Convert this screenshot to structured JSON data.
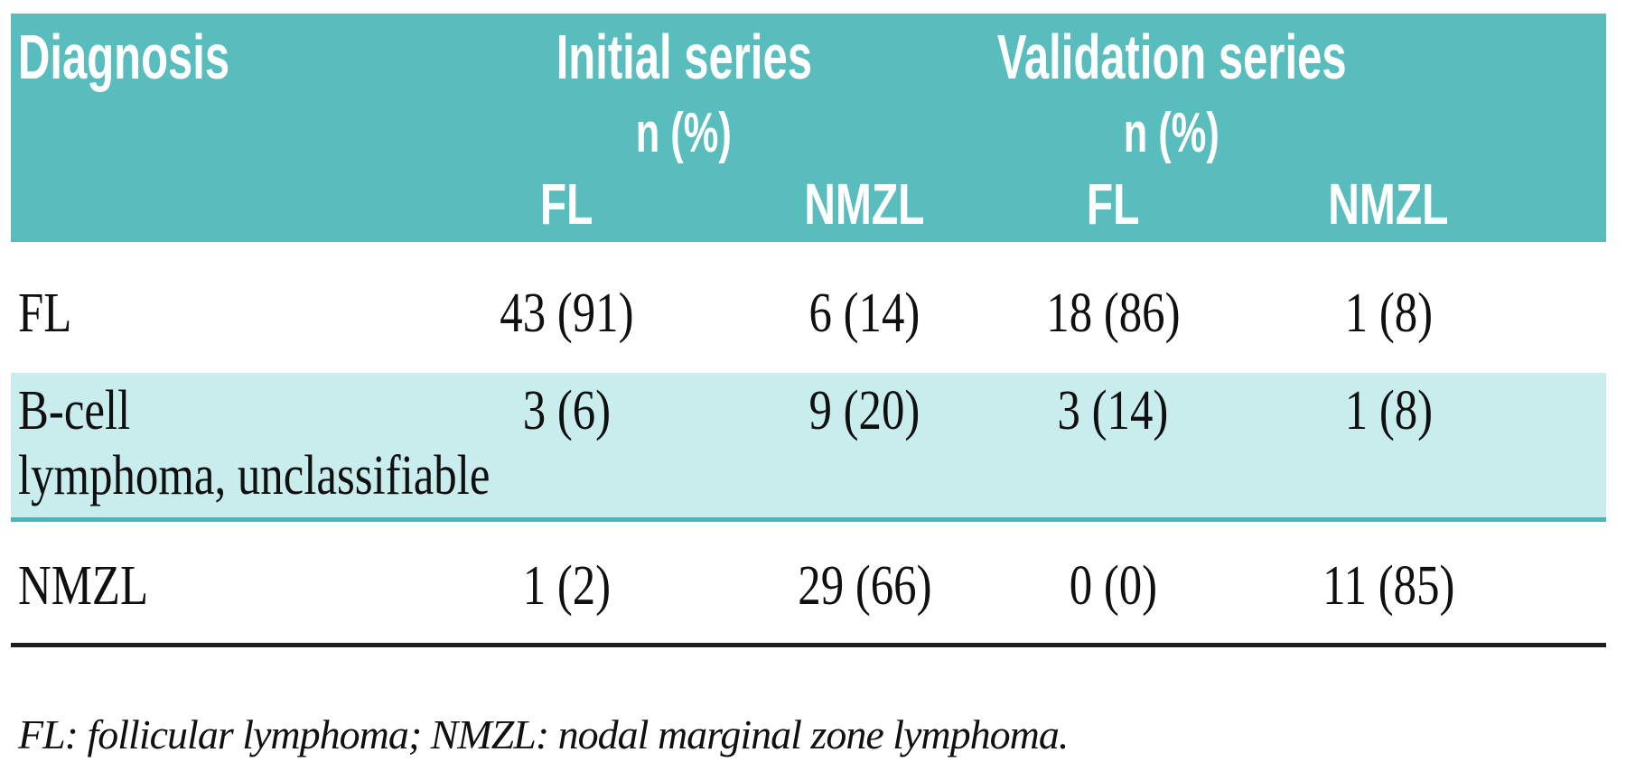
{
  "table": {
    "header": {
      "diagnosis_label": "Diagnosis",
      "groups": [
        {
          "title": "Initial series",
          "subtitle": "n (%)",
          "columns": [
            "FL",
            "NMZL"
          ]
        },
        {
          "title": "Validation series",
          "subtitle": "n (%)",
          "columns": [
            "FL",
            "NMZL"
          ]
        }
      ]
    },
    "rows": [
      {
        "diagnosis": "FL",
        "diagnosis_line2": "",
        "values": [
          "43 (91)",
          "6 (14)",
          "18 (86)",
          "1 (8)"
        ]
      },
      {
        "diagnosis": "B-cell",
        "diagnosis_line2": "lymphoma, unclassifiable",
        "values": [
          "3 (6)",
          "9 (20)",
          "3 (14)",
          "1 (8)"
        ]
      },
      {
        "diagnosis": "NMZL",
        "diagnosis_line2": "",
        "values": [
          "1 (2)",
          "29 (66)",
          "0 (0)",
          "11 (85)"
        ]
      }
    ],
    "footnote": "FL: follicular lymphoma; NMZL: nodal marginal zone lymphoma."
  },
  "colors": {
    "header_bg": "#5abdbd",
    "header_text": "#ffffff",
    "highlight_row_bg": "#c9ecec",
    "teal_separator": "#50b4b5",
    "black_rule": "#1e1e1e",
    "body_text": "#101010"
  }
}
